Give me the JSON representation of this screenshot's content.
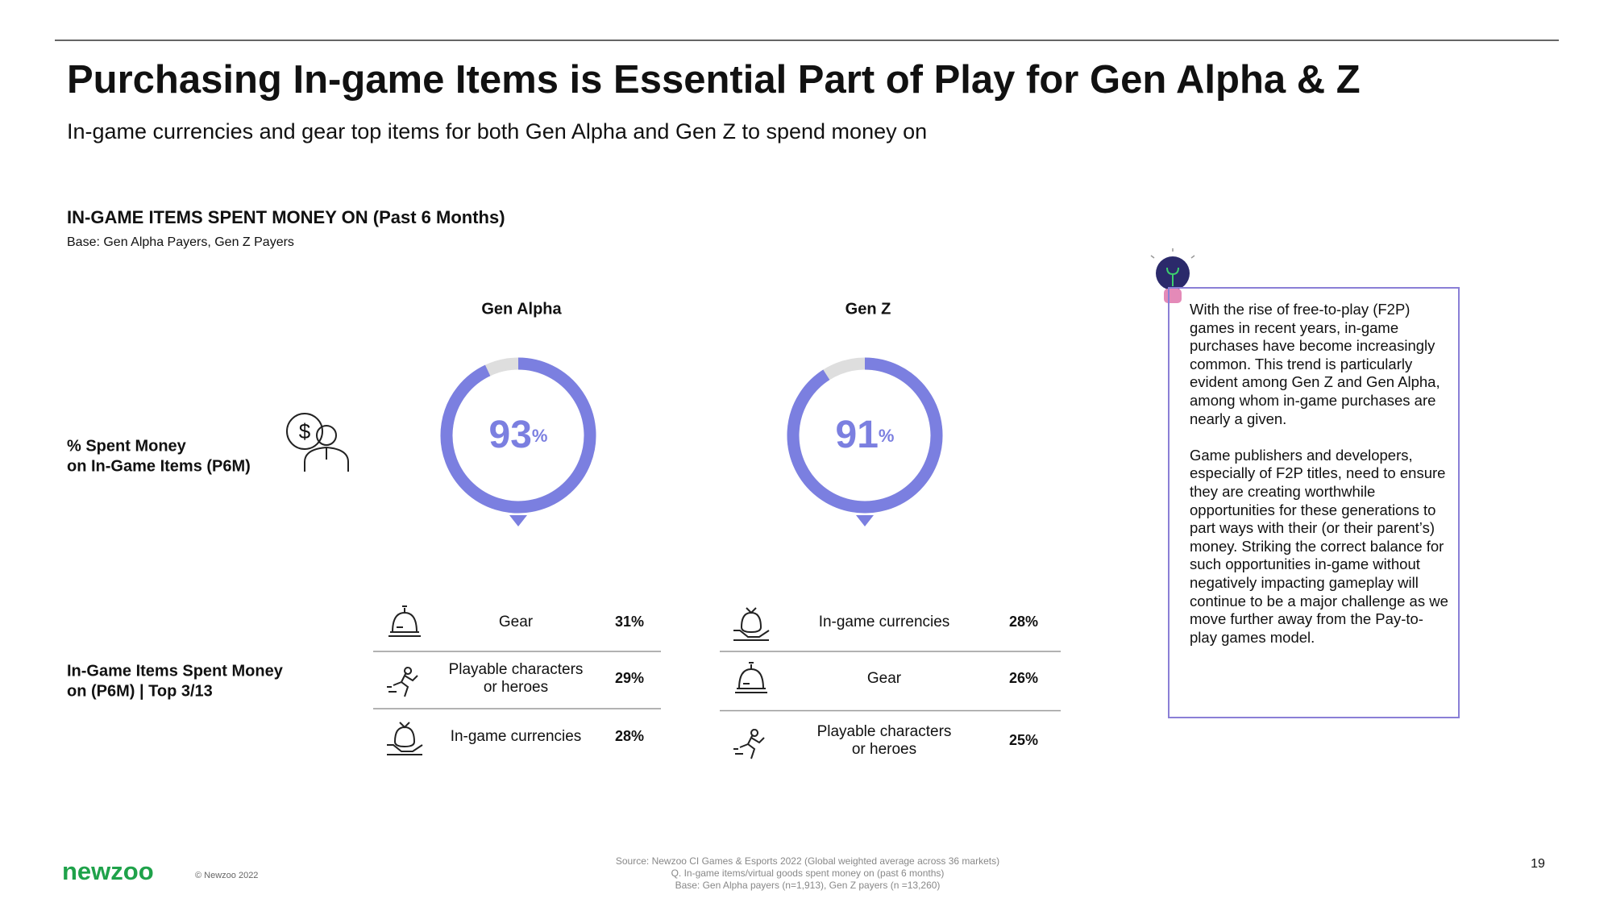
{
  "header": {
    "title": "Purchasing In-game Items is Essential Part of Play for Gen Alpha & Z",
    "subtitle": "In-game currencies and gear top items for both Gen Alpha and Gen Z to spend money on"
  },
  "section": {
    "title": "IN-GAME ITEMS SPENT MONEY ON (Past 6 Months)",
    "base": "Base: Gen Alpha Payers, Gen Z Payers"
  },
  "row_labels": [
    [
      "% Spent Money",
      "on In-Game Items (P6M)"
    ],
    [
      "In-Game Items Spent Money",
      "on (P6M) | Top 3/13"
    ]
  ],
  "groups": [
    {
      "name": "Gen Alpha",
      "percent": 93,
      "unit": "%",
      "color": "#7b7fe0",
      "items": [
        {
          "label": [
            "Gear"
          ],
          "value": "31%",
          "icon": "bell"
        },
        {
          "label": [
            "Playable characters",
            "or heroes"
          ],
          "value": "29%",
          "icon": "runner"
        },
        {
          "label": [
            "In-game currencies"
          ],
          "value": "28%",
          "icon": "money"
        }
      ]
    },
    {
      "name": "Gen Z",
      "percent": 91,
      "unit": "%",
      "color": "#7b7fe0",
      "items": [
        {
          "label": [
            "In-game currencies"
          ],
          "value": "28%",
          "icon": "money"
        },
        {
          "label": [
            "Gear"
          ],
          "value": "26%",
          "icon": "bell"
        },
        {
          "label": [
            "Playable characters",
            "or heroes"
          ],
          "value": "25%",
          "icon": "runner"
        }
      ]
    }
  ],
  "note": [
    "With the rise of free-to-play (F2P) games in recent years, in-game purchases have become increasingly common. This trend is particularly evident among Gen Z and Gen Alpha, among whom in-game purchases are nearly a given.",
    "Game publishers and developers, especially of F2P titles, need to ensure they are creating worthwhile opportunities for these generations to part ways with their (or their parent’s) money. Striking the correct balance for such opportunities in-game without negatively impacting gameplay will continue to be a major challenge as we move further away from the Pay-to-play games model."
  ],
  "footer": {
    "logo": "newzoo",
    "copyright": "© Newzoo 2022",
    "source": [
      "Source: Newzoo CI Games & Esports 2022 (Global weighted average across 36 markets)",
      "Q. In-game items/virtual goods spent money on (past 6 months)",
      "Base: Gen Alpha payers (n=1,913), Gen Z payers (n =13,260)"
    ],
    "page": "19"
  }
}
